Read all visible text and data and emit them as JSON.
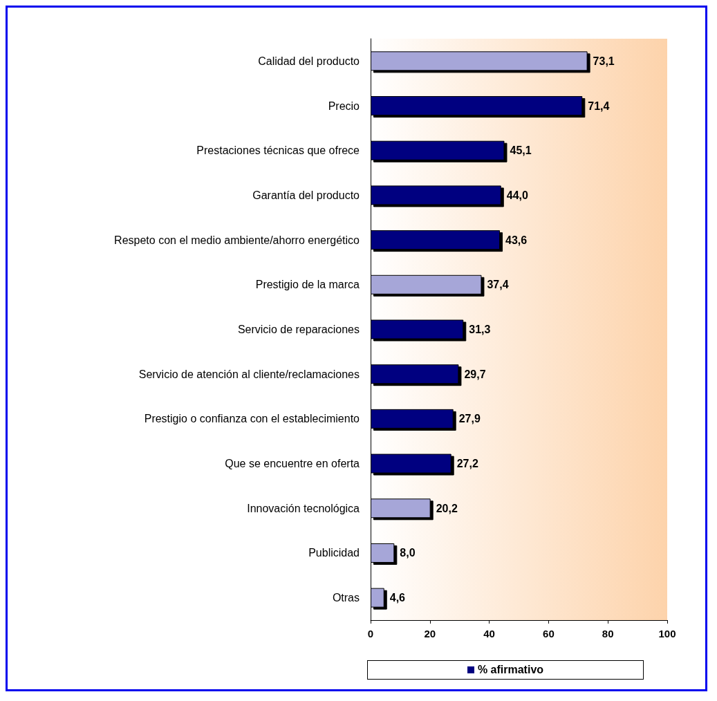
{
  "chart_data": {
    "type": "bar",
    "orientation": "horizontal",
    "categories": [
      "Calidad del producto",
      "Precio",
      "Prestaciones técnicas que ofrece",
      "Garantía del producto",
      "Respeto con el medio ambiente/ahorro energético",
      "Prestigio de la marca",
      "Servicio de reparaciones",
      "Servicio de atención al cliente/reclamaciones",
      "Prestigio o confianza con el establecimiento",
      "Que se encuentre en oferta",
      "Innovación tecnológica",
      "Publicidad",
      "Otras"
    ],
    "series": [
      {
        "name": "% afirmativo",
        "color": "#000080",
        "colors": [
          "#a6a6d8",
          "#000080",
          "#000080",
          "#000080",
          "#000080",
          "#a6a6d8",
          "#000080",
          "#000080",
          "#000080",
          "#000080",
          "#a6a6d8",
          "#a6a6d8",
          "#a6a6d8"
        ],
        "values": [
          73.1,
          71.4,
          45.1,
          44.0,
          43.6,
          37.4,
          31.3,
          29.7,
          27.9,
          27.2,
          20.2,
          8.0,
          4.6
        ],
        "value_labels": [
          "73,1",
          "71,4",
          "45,1",
          "44,0",
          "43,6",
          "37,4",
          "31,3",
          "29,7",
          "27,9",
          "27,2",
          "20,2",
          "8,0",
          "4,6"
        ]
      }
    ],
    "xlim": [
      0,
      100
    ],
    "xticks": [
      0,
      20,
      40,
      60,
      80,
      100
    ],
    "grid": false,
    "legend": "bottom"
  }
}
